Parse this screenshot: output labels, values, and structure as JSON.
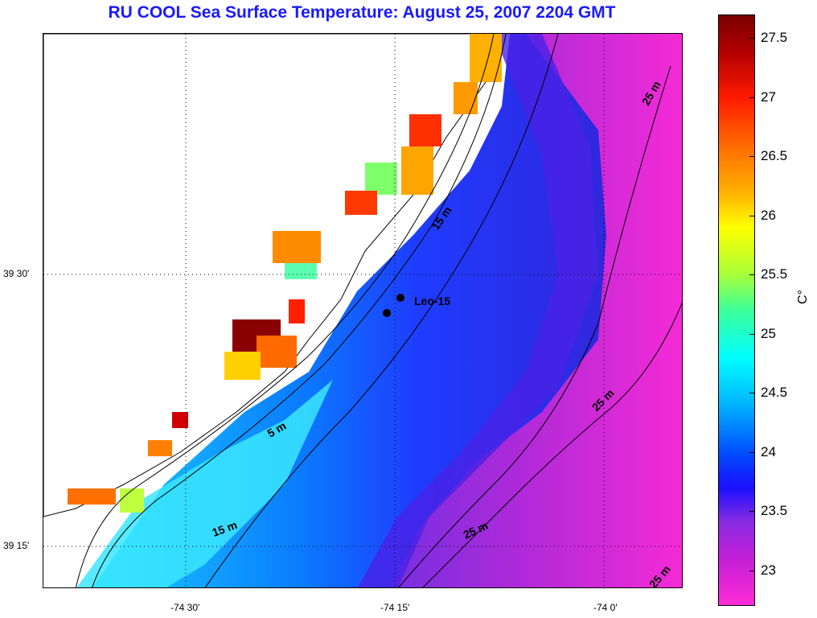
{
  "title": "RU COOL  Sea Surface Temperature:  August 25, 2007 2204 GMT",
  "latitude_labels": [
    "39 30'",
    "39 15'"
  ],
  "longitude_labels": [
    "-74 30'",
    "-74 15'",
    "-74 0'"
  ],
  "station_label": "Leo-15",
  "contour_labels": [
    "25 m",
    "15 m",
    "5 m",
    "25 m",
    "15 m",
    "25 m",
    "25 m"
  ],
  "colorbar": {
    "unit": "C°",
    "ticks": [
      "27.5",
      "27",
      "26.5",
      "26",
      "25.5",
      "25",
      "24.5",
      "24",
      "23.5",
      "23"
    ],
    "range": [
      22.7,
      27.7
    ]
  },
  "colors": {
    "title": "#1a1aff",
    "warm": "#ff1a00",
    "cold": "#ff2bd6",
    "mid": "#1a10ff"
  }
}
